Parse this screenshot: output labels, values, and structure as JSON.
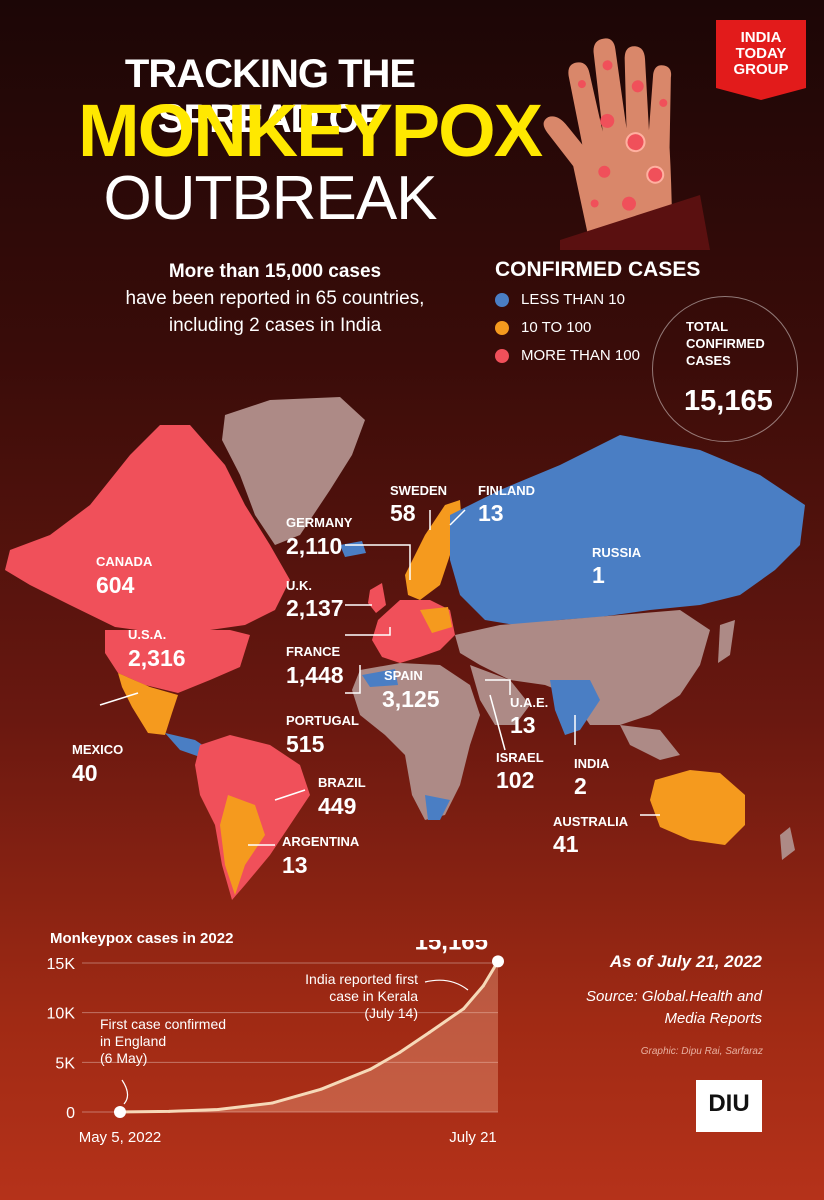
{
  "header": {
    "title_line1": "TRACKING THE SPREAD OF",
    "title_line2": "MONKEYPOX",
    "title_line3": "OUTBREAK",
    "logo_text": "INDIA TODAY GROUP"
  },
  "intro": {
    "bold": "More than 15,000 cases",
    "line2": "have been reported in 65 countries,",
    "line3": "including 2 cases in India"
  },
  "legend": {
    "title": "CONFIRMED CASES",
    "items": [
      {
        "label": "LESS THAN 10",
        "color": "#4a7ec4"
      },
      {
        "label": "10 TO 100",
        "color": "#f59a1e"
      },
      {
        "label": "MORE THAN 100",
        "color": "#f0505a"
      }
    ]
  },
  "total": {
    "label": "TOTAL CONFIRMED CASES",
    "value": "15,165"
  },
  "countries": [
    {
      "name": "CANADA",
      "value": "604"
    },
    {
      "name": "U.S.A.",
      "value": "2,316"
    },
    {
      "name": "MEXICO",
      "value": "40"
    },
    {
      "name": "BRAZIL",
      "value": "449"
    },
    {
      "name": "ARGENTINA",
      "value": "13"
    },
    {
      "name": "GERMANY",
      "value": "2,110"
    },
    {
      "name": "U.K.",
      "value": "2,137"
    },
    {
      "name": "FRANCE",
      "value": "1,448"
    },
    {
      "name": "PORTUGAL",
      "value": "515"
    },
    {
      "name": "SPAIN",
      "value": "3,125"
    },
    {
      "name": "SWEDEN",
      "value": "58"
    },
    {
      "name": "FINLAND",
      "value": "13"
    },
    {
      "name": "RUSSIA",
      "value": "1"
    },
    {
      "name": "U.A.E.",
      "value": "13"
    },
    {
      "name": "ISRAEL",
      "value": "102"
    },
    {
      "name": "INDIA",
      "value": "2"
    },
    {
      "name": "AUSTRALIA",
      "value": "41"
    }
  ],
  "chart_data": {
    "type": "area",
    "title": "Monkeypox cases in 2022",
    "x": [
      "2022-05-05",
      "2022-05-15",
      "2022-05-25",
      "2022-06-05",
      "2022-06-15",
      "2022-06-25",
      "2022-07-01",
      "2022-07-07",
      "2022-07-14",
      "2022-07-18",
      "2022-07-21"
    ],
    "x_tick_labels": [
      "May 5, 2022",
      "July 21"
    ],
    "y": [
      1,
      60,
      250,
      900,
      2300,
      4300,
      6000,
      8000,
      10400,
      12700,
      15165
    ],
    "y_ticks": [
      "0",
      "5K",
      "10K",
      "15K"
    ],
    "ylim": [
      0,
      15000
    ],
    "end_label": "15,165",
    "annotations": [
      {
        "text": "First case confirmed in England (6 May)",
        "lines": [
          "First case confirmed",
          "in England",
          "(6 May)"
        ]
      },
      {
        "text": "India reported first case in Kerala (July 14)",
        "lines": [
          "India reported first",
          "case in Kerala",
          "(July 14)"
        ]
      }
    ]
  },
  "footer": {
    "as_of": "As of July 21, 2022",
    "source_line1": "Source: Global.Health and",
    "source_line2": "Media Reports",
    "graphic": "Graphic: Dipu Rai, Sarfaraz",
    "diu": "DIU"
  }
}
